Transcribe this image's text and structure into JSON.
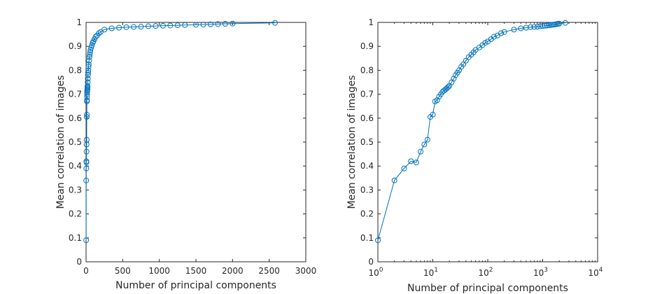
{
  "chart_data": [
    {
      "type": "line",
      "xscale": "linear",
      "xlim": [
        0,
        3000
      ],
      "ylim": [
        0,
        1
      ],
      "xlabel": "Number of principal components",
      "ylabel": "Mean correlation of images",
      "x_ticks": [
        0,
        500,
        1000,
        1500,
        2000,
        2500,
        3000
      ],
      "x_tick_labels": [
        "0",
        "500",
        "1000",
        "1500",
        "2000",
        "2500",
        "3000"
      ],
      "y_ticks": [
        0,
        0.1,
        0.2,
        0.3,
        0.4,
        0.5,
        0.6,
        0.7,
        0.8,
        0.9,
        1
      ],
      "y_tick_labels": [
        "0",
        "0.1",
        "0.2",
        "0.3",
        "0.4",
        "0.5",
        "0.6",
        "0.7",
        "0.8",
        "0.9",
        "1"
      ],
      "color": "#0072BD",
      "marker": "circle",
      "series": [
        {
          "x": [
            1,
            2,
            3,
            4,
            5,
            6,
            7,
            8,
            9,
            10,
            11,
            12,
            13,
            14,
            15,
            16,
            17,
            18,
            19,
            20,
            22,
            24,
            26,
            28,
            30,
            33,
            36,
            40,
            45,
            50,
            55,
            60,
            70,
            80,
            90,
            100,
            115,
            130,
            150,
            175,
            200,
            250,
            350,
            450,
            550,
            650,
            750,
            850,
            950,
            1050,
            1150,
            1250,
            1350,
            1500,
            1600,
            1700,
            1800,
            1900,
            2000,
            2580
          ],
          "y": [
            0.09,
            0.34,
            0.39,
            0.42,
            0.415,
            0.46,
            0.49,
            0.51,
            0.605,
            0.615,
            0.67,
            0.675,
            0.69,
            0.7,
            0.71,
            0.715,
            0.72,
            0.725,
            0.73,
            0.735,
            0.75,
            0.765,
            0.78,
            0.79,
            0.8,
            0.815,
            0.825,
            0.84,
            0.855,
            0.865,
            0.875,
            0.885,
            0.895,
            0.905,
            0.915,
            0.92,
            0.93,
            0.94,
            0.945,
            0.955,
            0.96,
            0.97,
            0.975,
            0.978,
            0.98,
            0.981,
            0.982,
            0.984,
            0.985,
            0.986,
            0.987,
            0.988,
            0.989,
            0.99,
            0.991,
            0.992,
            0.993,
            0.994,
            0.995,
            0.998
          ]
        }
      ]
    },
    {
      "type": "line",
      "xscale": "log",
      "xlim": [
        1,
        10000
      ],
      "ylim": [
        0,
        1
      ],
      "xlabel": "Number of principal components",
      "ylabel": "Mean correlation of images",
      "x_ticks": [
        1,
        10,
        100,
        1000,
        10000
      ],
      "x_tick_labels": [
        {
          "base": "10",
          "exp": "0"
        },
        {
          "base": "10",
          "exp": "1"
        },
        {
          "base": "10",
          "exp": "2"
        },
        {
          "base": "10",
          "exp": "3"
        },
        {
          "base": "10",
          "exp": "4"
        }
      ],
      "y_ticks": [
        0,
        0.1,
        0.2,
        0.3,
        0.4,
        0.5,
        0.6,
        0.7,
        0.8,
        0.9,
        1
      ],
      "y_tick_labels": [
        "0",
        "0.1",
        "0.2",
        "0.3",
        "0.4",
        "0.5",
        "0.6",
        "0.7",
        "0.8",
        "0.9",
        "1"
      ],
      "color": "#0072BD",
      "marker": "circle",
      "series": [
        {
          "x": [
            1,
            2,
            3,
            4,
            5,
            6,
            7,
            8,
            9,
            10,
            11,
            12,
            13,
            14,
            15,
            16,
            17,
            18,
            19,
            20,
            22,
            24,
            26,
            28,
            30,
            33,
            36,
            40,
            45,
            50,
            55,
            60,
            70,
            80,
            90,
            100,
            115,
            130,
            150,
            175,
            200,
            300,
            400,
            500,
            600,
            700,
            800,
            900,
            1000,
            1100,
            1200,
            1300,
            1400,
            1500,
            1600,
            1700,
            1800,
            1900,
            2000,
            2580
          ],
          "y": [
            0.09,
            0.34,
            0.39,
            0.42,
            0.415,
            0.46,
            0.49,
            0.51,
            0.605,
            0.615,
            0.67,
            0.675,
            0.69,
            0.7,
            0.71,
            0.715,
            0.72,
            0.725,
            0.73,
            0.735,
            0.75,
            0.765,
            0.78,
            0.79,
            0.8,
            0.815,
            0.825,
            0.84,
            0.855,
            0.865,
            0.875,
            0.885,
            0.895,
            0.905,
            0.915,
            0.92,
            0.93,
            0.94,
            0.945,
            0.955,
            0.96,
            0.97,
            0.975,
            0.978,
            0.98,
            0.981,
            0.982,
            0.984,
            0.985,
            0.986,
            0.987,
            0.988,
            0.989,
            0.99,
            0.991,
            0.992,
            0.993,
            0.994,
            0.995,
            0.998
          ]
        }
      ]
    }
  ]
}
